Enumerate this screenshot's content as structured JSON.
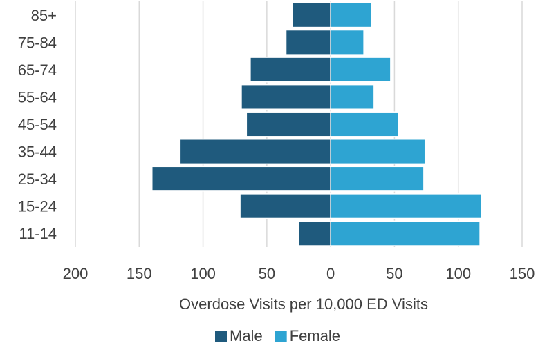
{
  "chart_data": {
    "type": "bar",
    "orientation": "horizontal-population-pyramid",
    "categories": [
      "11-14",
      "15-24",
      "25-34",
      "35-44",
      "45-54",
      "55-64",
      "65-74",
      "75-84",
      "85+"
    ],
    "series": [
      {
        "name": "Male",
        "color": "#1f5a7d",
        "values": [
          -25,
          -71,
          -140,
          -118,
          -66,
          -70,
          -63,
          -35,
          -30
        ]
      },
      {
        "name": "Female",
        "color": "#2ea4d2",
        "values": [
          117,
          118,
          73,
          74,
          53,
          34,
          47,
          26,
          32
        ]
      }
    ],
    "xlabel": "Overdose Visits per 10,000 ED Visits",
    "xlim": [
      -200,
      150
    ],
    "xticks": [
      -200,
      -150,
      -100,
      -50,
      0,
      50,
      100,
      150
    ],
    "xtick_labels": [
      "200",
      "150",
      "100",
      "50",
      "0",
      "50",
      "100",
      "150"
    ],
    "grid": "vertical",
    "legend_position": "bottom"
  }
}
